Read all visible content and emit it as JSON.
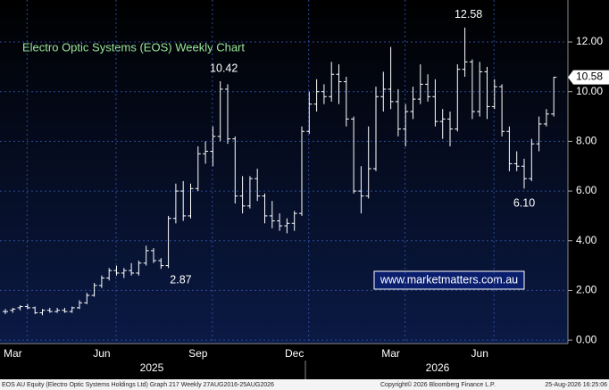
{
  "chart_data": {
    "type": "ohlc",
    "title": "Electro Optic Systems (EOS) Weekly Chart",
    "color": "#ffffff",
    "grid": true,
    "categories": [
      null,
      "Mar",
      null,
      null,
      null,
      null,
      null,
      null,
      null,
      null,
      null,
      null,
      null,
      "Jun",
      null,
      null,
      null,
      null,
      null,
      null,
      null,
      null,
      null,
      null,
      null,
      null,
      "Sep",
      null,
      null,
      null,
      null,
      null,
      null,
      null,
      null,
      null,
      null,
      null,
      null,
      "Dec",
      null,
      null,
      null,
      null,
      null,
      null,
      null,
      null,
      null,
      null,
      null,
      null,
      "Mar",
      null,
      null,
      null,
      null,
      null,
      null,
      null,
      null,
      null,
      null,
      null,
      "Jun",
      null,
      null,
      null,
      null,
      null,
      null,
      null,
      null,
      null,
      null
    ],
    "x_groups": [
      {
        "label": "2025"
      },
      {
        "label": "2026"
      }
    ],
    "open": [
      1.15,
      1.2,
      1.3,
      1.35,
      1.3,
      1.1,
      1.2,
      1.15,
      1.2,
      1.15,
      1.3,
      1.5,
      1.8,
      2.2,
      2.5,
      2.8,
      2.7,
      2.8,
      2.7,
      3.1,
      3.6,
      3.2,
      3.0,
      4.9,
      6.0,
      5.0,
      6.1,
      7.5,
      7.6,
      8.2,
      10.1,
      8.1,
      5.8,
      5.4,
      6.5,
      5.8,
      5.0,
      4.8,
      4.6,
      4.7,
      5.1,
      8.4,
      9.5,
      10.0,
      9.8,
      10.7,
      10.4,
      8.9,
      6.0,
      5.8,
      6.9,
      9.8,
      10.1,
      9.6,
      8.5,
      9.2,
      9.7,
      10.3,
      9.8,
      8.8,
      8.9,
      8.5,
      10.9,
      11.2,
      9.2,
      10.8,
      9.4,
      10.2,
      8.4,
      7.1,
      7.0,
      6.5,
      7.9,
      8.7,
      9.1
    ],
    "high": [
      1.25,
      1.3,
      1.4,
      1.45,
      1.35,
      1.25,
      1.3,
      1.3,
      1.3,
      1.35,
      1.6,
      1.9,
      2.3,
      2.6,
      2.9,
      3.0,
      2.9,
      3.1,
      3.2,
      3.8,
      3.7,
      3.3,
      5.0,
      6.3,
      6.4,
      6.3,
      7.8,
      8.0,
      8.6,
      10.42,
      10.3,
      8.2,
      6.6,
      6.6,
      6.9,
      5.9,
      5.6,
      5.1,
      4.9,
      5.2,
      8.6,
      10.0,
      10.5,
      10.3,
      11.2,
      11.1,
      10.6,
      9.0,
      7.0,
      8.6,
      10.2,
      10.8,
      11.8,
      10.1,
      9.5,
      10.2,
      11.1,
      10.7,
      10.5,
      9.3,
      9.2,
      11.1,
      12.58,
      11.3,
      11.2,
      11.0,
      10.5,
      10.3,
      8.6,
      7.6,
      7.3,
      8.1,
      9.0,
      9.3,
      10.6
    ],
    "low": [
      1.05,
      1.1,
      1.2,
      1.25,
      1.05,
      1.0,
      1.1,
      1.1,
      1.1,
      1.1,
      1.25,
      1.45,
      1.75,
      2.1,
      2.4,
      2.6,
      2.5,
      2.6,
      2.6,
      3.0,
      3.1,
      2.87,
      2.9,
      4.7,
      4.8,
      4.9,
      6.0,
      7.1,
      7.0,
      8.0,
      7.9,
      5.5,
      5.1,
      5.3,
      5.6,
      4.7,
      4.5,
      4.4,
      4.3,
      4.4,
      5.0,
      8.3,
      9.2,
      9.5,
      9.6,
      9.5,
      8.6,
      5.9,
      5.1,
      5.7,
      6.8,
      9.2,
      9.3,
      8.2,
      7.8,
      8.9,
      9.5,
      9.6,
      8.6,
      8.1,
      7.8,
      8.4,
      10.6,
      8.9,
      9.0,
      8.9,
      9.3,
      8.2,
      6.8,
      6.8,
      6.1,
      6.4,
      7.6,
      8.6,
      9.0
    ],
    "close": [
      1.15,
      1.25,
      1.35,
      1.3,
      1.1,
      1.2,
      1.15,
      1.2,
      1.15,
      1.3,
      1.5,
      1.8,
      2.2,
      2.5,
      2.8,
      2.7,
      2.8,
      2.7,
      3.1,
      3.6,
      3.2,
      3.0,
      4.9,
      6.0,
      5.0,
      6.1,
      7.5,
      7.6,
      8.2,
      10.1,
      8.1,
      5.8,
      5.4,
      6.5,
      5.8,
      5.0,
      4.8,
      4.6,
      4.7,
      5.1,
      8.4,
      9.5,
      10.0,
      9.8,
      10.7,
      10.4,
      8.9,
      6.0,
      5.8,
      6.9,
      9.8,
      10.1,
      9.6,
      8.5,
      9.2,
      9.7,
      10.3,
      9.8,
      8.8,
      8.9,
      8.5,
      10.9,
      11.2,
      9.2,
      10.8,
      9.4,
      10.2,
      8.4,
      7.1,
      7.0,
      6.5,
      7.9,
      8.7,
      9.1,
      10.58
    ],
    "ylim": [
      -0.14,
      13.69
    ],
    "yticks": [
      {
        "value": 0,
        "label": "0.00"
      },
      {
        "value": 2,
        "label": "2.00"
      },
      {
        "value": 4,
        "label": "4.00"
      },
      {
        "value": 6,
        "label": "6.00"
      },
      {
        "value": 8,
        "label": "8.00"
      },
      {
        "value": 10,
        "label": "10.00"
      },
      {
        "value": 12,
        "label": "12.00"
      }
    ],
    "annotations": [
      {
        "value": 12.58,
        "label": "12.58"
      },
      {
        "value": 10.42,
        "label": "10.42"
      },
      {
        "value": 2.87,
        "label": "2.87"
      },
      {
        "value": 6.1,
        "label": "6.10"
      }
    ],
    "last_price": {
      "value": 10.58,
      "label": "10.58"
    },
    "watermark": "www.marketmatters.com.au",
    "footer": {
      "left": "EOS AU Equity (Electro Optic Systems Holdings Ltd) Graph 217 Weekly 27AUG2016-25AUG2026",
      "center": "Copyright© 2026 Bloomberg Finance L.P.",
      "right": "25-Aug-2026 16:25:06"
    }
  }
}
